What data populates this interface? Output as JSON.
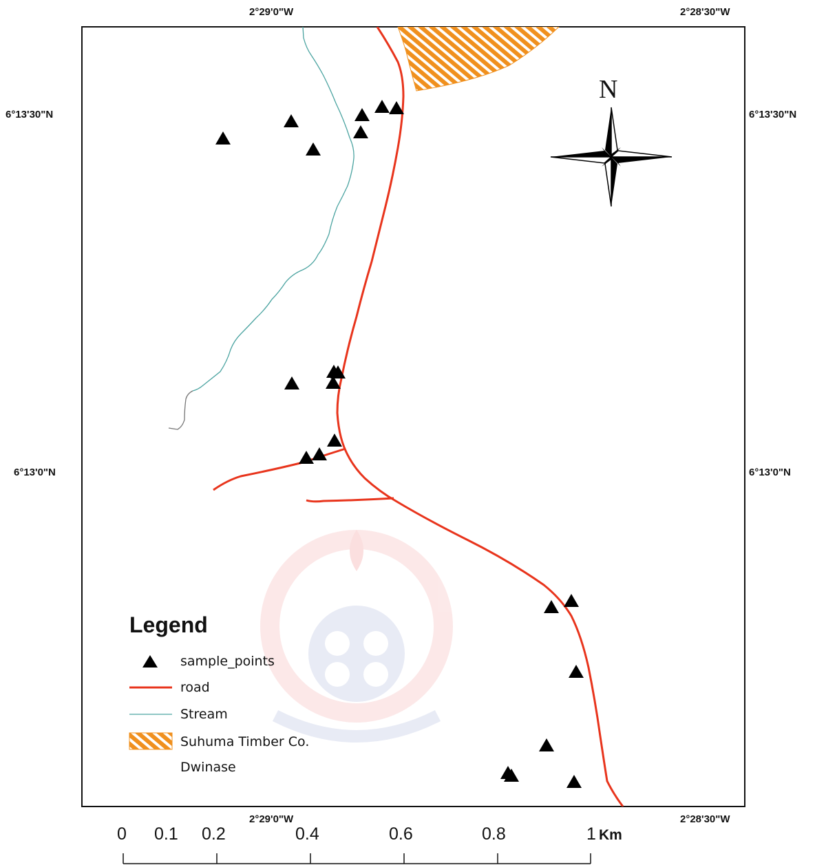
{
  "coordinates": {
    "top_left": "2°29'0\"W",
    "top_right": "2°28'30\"W",
    "bottom_left": "2°29'0\"W",
    "bottom_right": "2°28'30\"W",
    "left_upper": "6°13'30\"N",
    "left_lower": "6°13'0\"N",
    "right_upper": "6°13'30\"N",
    "right_lower": "6°13'0\"N"
  },
  "north_arrow": {
    "letter": "N",
    "icon": "compass-rose-icon"
  },
  "legend": {
    "title": "Legend",
    "items": [
      {
        "label": "sample_points",
        "symbol": "triangle-icon",
        "color": "#000000"
      },
      {
        "label": "road",
        "symbol": "line",
        "color": "#e8341c"
      },
      {
        "label": "Stream",
        "symbol": "line",
        "color": "#4aa3a0"
      },
      {
        "label": "Suhuma Timber Co.",
        "symbol": "hatch",
        "color": "#f0901e"
      },
      {
        "label": "Dwinase",
        "symbol": "none",
        "color": "#ffffff"
      }
    ]
  },
  "scale_bar": {
    "labels": [
      "0",
      "0.1",
      "0.2",
      "0.4",
      "0.6",
      "0.8",
      "1"
    ],
    "unit": "Km"
  },
  "colors": {
    "road": "#e8341c",
    "stream": "#4aa3a0",
    "stream_lower": "#777777",
    "timber": "#f0901e"
  }
}
